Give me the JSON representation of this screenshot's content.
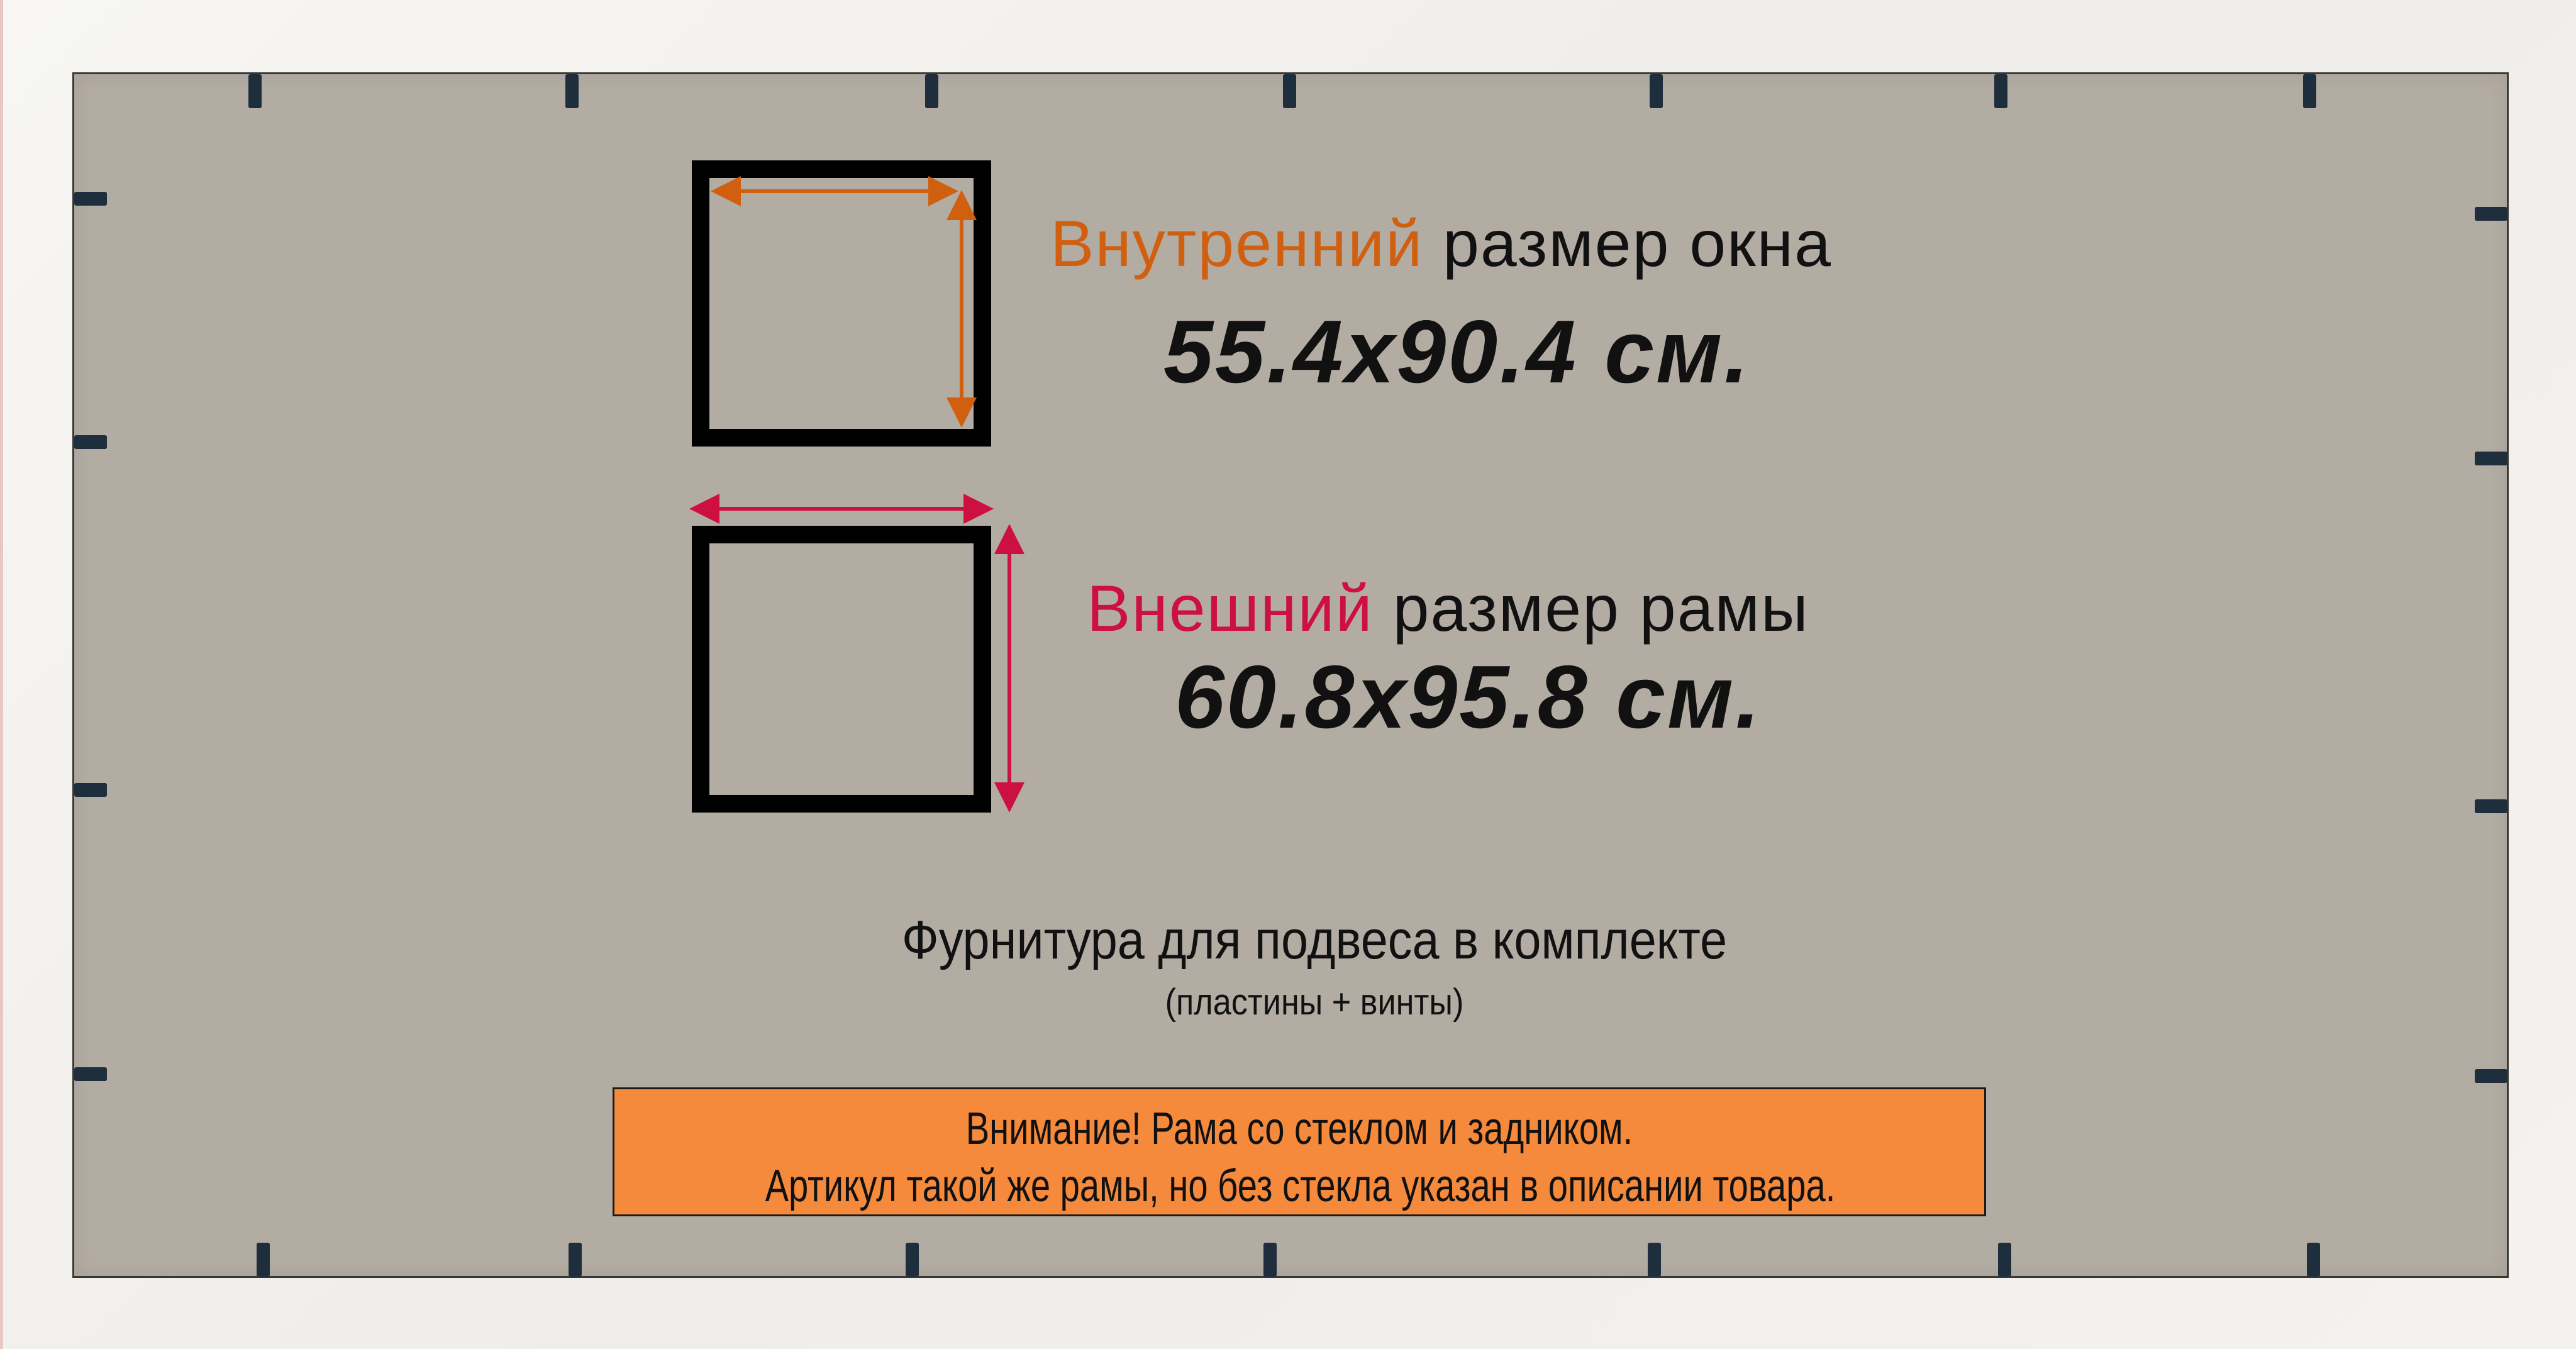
{
  "inner_size": {
    "label_highlight": "Внутренний",
    "label_rest": " размер окна",
    "value": "55.4x90.4 см.",
    "color": "#d0600f"
  },
  "outer_size": {
    "label_highlight": "Внешний",
    "label_rest": " размер рамы",
    "value": "60.8x95.8 см.",
    "color": "#cc1040"
  },
  "hardware": {
    "title": "Фурнитура для подвеса в комплекте",
    "subtitle": "(пластины + винты)"
  },
  "warning": {
    "line1": "Внимание! Рама со стеклом и задником.",
    "line2": "Артикул такой же рамы, но без стекла указан в описании товара.",
    "background": "#f5893c"
  },
  "frame": {
    "frame_color": "#f2f0ec",
    "backing_color": "#b3aca3",
    "clip_color": "#1f2e3c"
  }
}
